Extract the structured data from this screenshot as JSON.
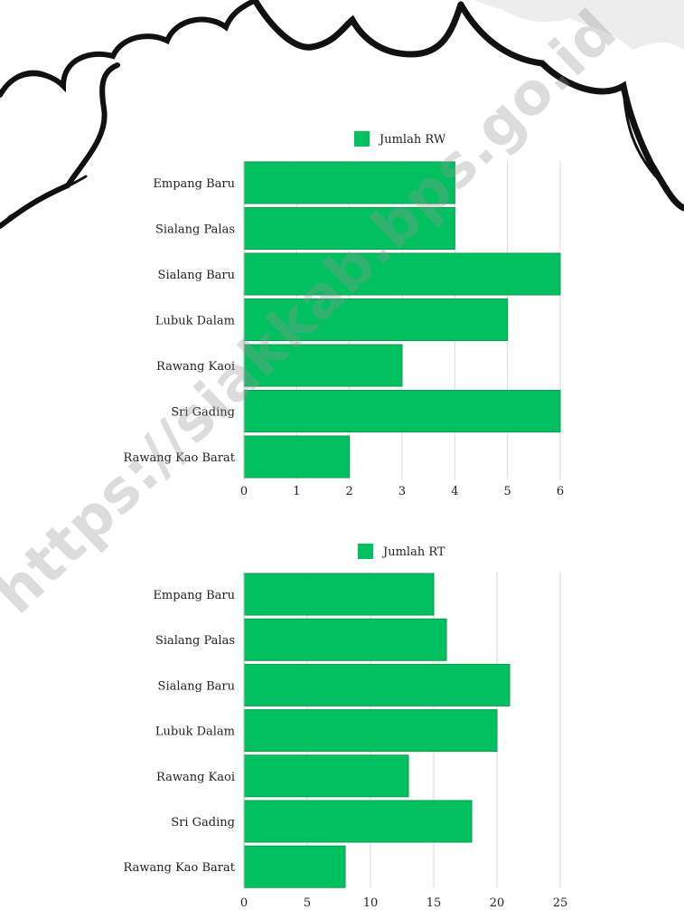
{
  "bar_color": "#00c060",
  "grid_color": "#d9d9d9",
  "text_color": "#222222",
  "watermark_text": "https://siakkab.bps.go.id",
  "chart_data": [
    {
      "type": "bar",
      "orientation": "horizontal",
      "categories": [
        "Empang Baru",
        "Sialang Palas",
        "Sialang Baru",
        "Lubuk Dalam",
        "Rawang Kaoi",
        "Sri Gading",
        "Rawang Kao Barat"
      ],
      "series": [
        {
          "name": "Jumlah RW",
          "values": [
            4,
            4,
            6,
            5,
            3,
            6,
            2
          ]
        }
      ],
      "xlim": [
        0,
        6
      ],
      "xticks": [
        0,
        1,
        2,
        3,
        4,
        5,
        6
      ],
      "legend": "top",
      "grid": true
    },
    {
      "type": "bar",
      "orientation": "horizontal",
      "categories": [
        "Empang Baru",
        "Sialang Palas",
        "Sialang Baru",
        "Lubuk Dalam",
        "Rawang Kaoi",
        "Sri Gading",
        "Rawang Kao Barat"
      ],
      "series": [
        {
          "name": "Jumlah RT",
          "values": [
            15,
            16,
            21,
            20,
            13,
            18,
            8
          ]
        }
      ],
      "xlim": [
        0,
        25
      ],
      "xticks": [
        0,
        5,
        10,
        15,
        20,
        25
      ],
      "legend": "top",
      "grid": true
    }
  ]
}
